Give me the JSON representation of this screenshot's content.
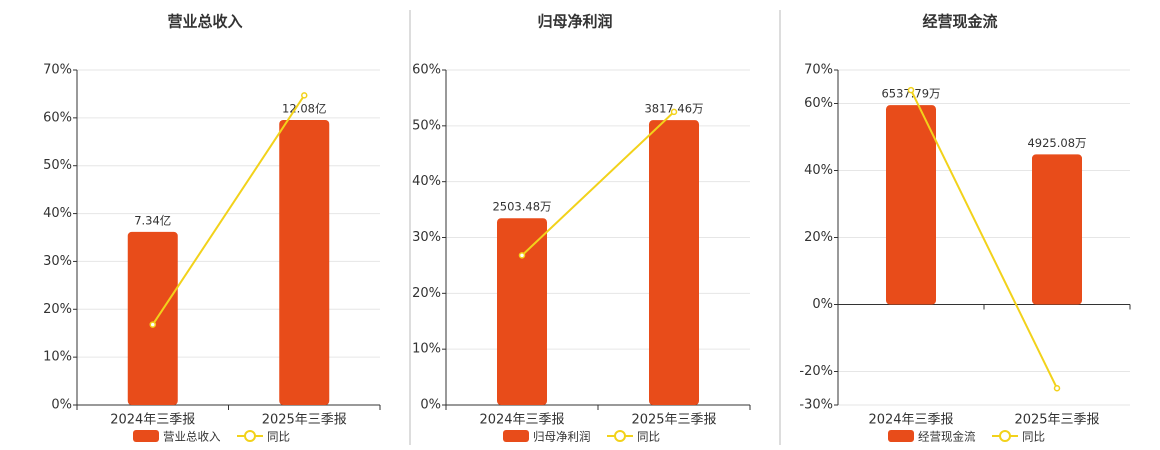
{
  "chart_data": [
    {
      "type": "bar",
      "title": "营业总收入",
      "categories": [
        "2024年三季报",
        "2025年三季报"
      ],
      "series": [
        {
          "name": "营业总收入",
          "type": "bar",
          "color": "#e84c1a",
          "axis": "y2",
          "values": [
            7.34,
            12.08
          ],
          "value_labels": [
            "7.34亿",
            "12.08亿"
          ]
        },
        {
          "name": "同比",
          "type": "line",
          "color": "#f2d21b",
          "values": [
            16.8,
            64.7
          ]
        }
      ],
      "ylim": [
        0,
        70
      ],
      "yticks": [
        {
          "value": 0,
          "label": "0%"
        },
        {
          "value": 10,
          "label": "10%"
        },
        {
          "value": 20,
          "label": "20%"
        },
        {
          "value": 30,
          "label": "30%"
        },
        {
          "value": 40,
          "label": "40%"
        },
        {
          "value": 50,
          "label": "50%"
        },
        {
          "value": 60,
          "label": "60%"
        },
        {
          "value": 70,
          "label": "70%"
        }
      ],
      "y2lim": [
        0,
        14.2
      ],
      "grid": true,
      "legend": "bottom"
    },
    {
      "type": "bar",
      "title": "归母净利润",
      "categories": [
        "2024年三季报",
        "2025年三季报"
      ],
      "series": [
        {
          "name": "归母净利润",
          "type": "bar",
          "color": "#e84c1a",
          "axis": "y2",
          "values": [
            2503.48,
            3817.46
          ],
          "value_labels": [
            "2503.48万",
            "3817.46万"
          ]
        },
        {
          "name": "同比",
          "type": "line",
          "color": "#f2d21b",
          "values": [
            26.8,
            52.5
          ]
        }
      ],
      "ylim": [
        0,
        60
      ],
      "yticks": [
        {
          "value": 0,
          "label": "0%"
        },
        {
          "value": 10,
          "label": "10%"
        },
        {
          "value": 20,
          "label": "20%"
        },
        {
          "value": 30,
          "label": "30%"
        },
        {
          "value": 40,
          "label": "40%"
        },
        {
          "value": 50,
          "label": "50%"
        },
        {
          "value": 60,
          "label": "60%"
        }
      ],
      "y2lim": [
        0,
        4490
      ],
      "grid": true,
      "legend": "bottom"
    },
    {
      "type": "bar",
      "title": "经营现金流",
      "categories": [
        "2024年三季报",
        "2025年三季报"
      ],
      "series": [
        {
          "name": "经营现金流",
          "type": "bar",
          "color": "#e84c1a",
          "axis": "y2",
          "values": [
            6537.79,
            4925.08
          ],
          "value_labels": [
            "6537.79万",
            "4925.08万"
          ]
        },
        {
          "name": "同比",
          "type": "line",
          "color": "#f2d21b",
          "values": [
            64,
            -25
          ]
        }
      ],
      "ylim": [
        -30,
        70
      ],
      "yticks": [
        {
          "value": -30,
          "label": "-30%"
        },
        {
          "value": -20,
          "label": "-20%"
        },
        {
          "value": 0,
          "label": "0%"
        },
        {
          "value": 20,
          "label": "20%"
        },
        {
          "value": 40,
          "label": "40%"
        },
        {
          "value": 60,
          "label": "60%"
        },
        {
          "value": 70,
          "label": "70%"
        }
      ],
      "y2lim": [
        -3296,
        7691
      ],
      "grid": true,
      "legend": "bottom"
    }
  ]
}
